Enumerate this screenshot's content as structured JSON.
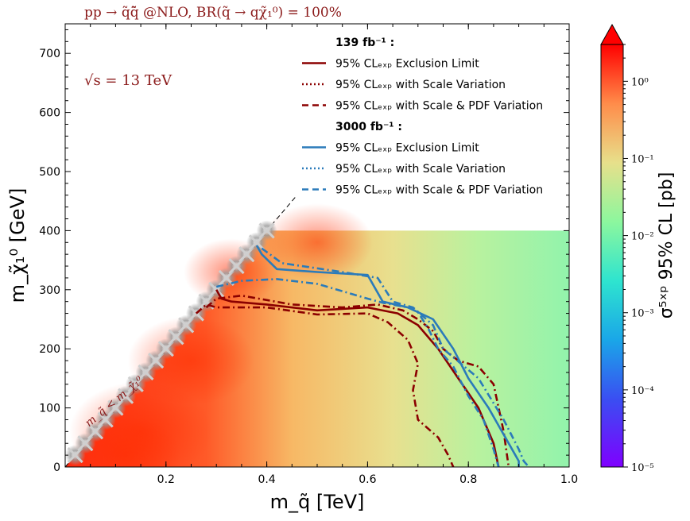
{
  "chart_data": {
    "type": "heatmap",
    "title": "pp → q̃q̃̄ @NLO, BR(q̃ → qχ̃₁⁰) = 100%",
    "annotation_energy": "√s = 13 TeV",
    "diagonal_label": "m_q̃ < m_χ̃₁⁰",
    "xlabel": "m_q̃ [TeV]",
    "ylabel": "m_χ̃₁⁰ [GeV]",
    "xlim": [
      0.0,
      1.0
    ],
    "ylim": [
      0,
      750
    ],
    "xticks": [
      0.2,
      0.4,
      0.6,
      0.8,
      1.0
    ],
    "xtick_labels": [
      "0.2",
      "0.4",
      "0.6",
      "0.8",
      "1.0"
    ],
    "yticks": [
      0,
      100,
      200,
      300,
      400,
      500,
      600,
      700
    ],
    "ytick_labels": [
      "0",
      "100",
      "200",
      "300",
      "400",
      "500",
      "600",
      "700"
    ],
    "colorbar": {
      "label": "σ⁵ˣᵖ 95% CL [pb]",
      "scale": "log",
      "range": [
        1e-05,
        3.0
      ],
      "ticks": [
        1.0,
        0.1,
        0.01,
        0.001,
        0.0001,
        1e-05
      ],
      "tick_labels": [
        "10⁰",
        "10⁻¹",
        "10⁻²",
        "10⁻³",
        "10⁻⁴",
        "10⁻⁵"
      ]
    },
    "heatmap_region": {
      "x_max": 1.0,
      "y_max": 400
    },
    "legend": {
      "group1_title": "139 fb⁻¹ :",
      "group2_title": "3000 fb⁻¹ :",
      "entries": [
        {
          "group": 1,
          "style": "solid",
          "color": "#8b0000",
          "label": "95% CLₑₓₚ Exclusion Limit"
        },
        {
          "group": 1,
          "style": "dotted",
          "color": "#8b0000",
          "label": "95% CLₑₓₚ with Scale Variation"
        },
        {
          "group": 1,
          "style": "dashed",
          "color": "#8b0000",
          "label": "95% CLₑₓₚ with Scale & PDF Variation"
        },
        {
          "group": 2,
          "style": "solid",
          "color": "#2b7bba",
          "label": "95% CLₑₓₚ Exclusion Limit"
        },
        {
          "group": 2,
          "style": "dotted",
          "color": "#2b7bba",
          "label": "95% CLₑₓₚ with Scale Variation"
        },
        {
          "group": 2,
          "style": "dashed",
          "color": "#2b7bba",
          "label": "95% CLₑₓₚ with Scale & PDF Variation"
        }
      ]
    },
    "series": [
      {
        "name": "139 fb-1 exclusion",
        "color": "#8b0000",
        "style": "solid",
        "x": [
          0.3,
          0.31,
          0.33,
          0.4,
          0.5,
          0.6,
          0.66,
          0.7,
          0.74,
          0.78,
          0.82,
          0.85,
          0.86
        ],
        "y": [
          300,
          285,
          280,
          275,
          265,
          270,
          260,
          240,
          200,
          150,
          100,
          40,
          0
        ]
      },
      {
        "name": "139 fb-1 scale variation",
        "color": "#8b0000",
        "style": "dashdot",
        "x": [
          0.28,
          0.3,
          0.35,
          0.45,
          0.55,
          0.62,
          0.67,
          0.7,
          0.73,
          0.75,
          0.78,
          0.82,
          0.85,
          0.87,
          0.88
        ],
        "y": [
          270,
          285,
          290,
          275,
          270,
          275,
          265,
          250,
          230,
          200,
          180,
          170,
          140,
          60,
          0
        ]
      },
      {
        "name": "139 fb-1 scale & PDF variation",
        "color": "#8b0000",
        "style": "dashdot",
        "x": [
          0.26,
          0.28,
          0.3,
          0.4,
          0.5,
          0.6,
          0.64,
          0.68,
          0.7,
          0.69,
          0.7,
          0.74,
          0.76,
          0.77
        ],
        "y": [
          260,
          275,
          270,
          270,
          258,
          260,
          245,
          215,
          175,
          130,
          80,
          50,
          20,
          0
        ]
      },
      {
        "name": "3000 fb-1 exclusion",
        "color": "#2b7bba",
        "style": "solid",
        "x": [
          0.38,
          0.39,
          0.42,
          0.5,
          0.6,
          0.63,
          0.68,
          0.73,
          0.77,
          0.8,
          0.84,
          0.88,
          0.9,
          0.9
        ],
        "y": [
          375,
          360,
          335,
          330,
          325,
          280,
          270,
          250,
          200,
          150,
          100,
          40,
          10,
          0
        ]
      },
      {
        "name": "3000 fb-1 scale variation",
        "color": "#2b7bba",
        "style": "dashdot",
        "x": [
          0.39,
          0.43,
          0.55,
          0.62,
          0.65,
          0.69,
          0.73,
          0.75,
          0.82,
          0.87,
          0.9,
          0.91,
          0.92
        ],
        "y": [
          370,
          345,
          330,
          320,
          280,
          270,
          240,
          200,
          150,
          80,
          30,
          10,
          0
        ]
      },
      {
        "name": "3000 fb-1 scale & PDF variation",
        "color": "#2b7bba",
        "style": "dashdot",
        "x": [
          0.3,
          0.35,
          0.42,
          0.5,
          0.56,
          0.6,
          0.63,
          0.68,
          0.7,
          0.72,
          0.74,
          0.77,
          0.8,
          0.83,
          0.85,
          0.86
        ],
        "y": [
          305,
          315,
          318,
          310,
          295,
          285,
          278,
          270,
          262,
          235,
          200,
          170,
          120,
          80,
          30,
          0
        ]
      }
    ]
  }
}
